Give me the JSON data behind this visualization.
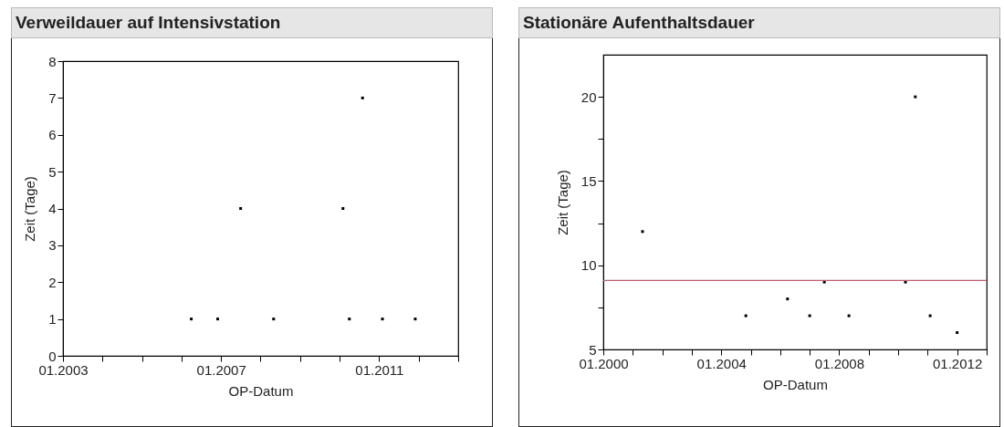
{
  "chart_data": [
    {
      "type": "scatter",
      "title": "Verweildauer auf Intensivstation",
      "xlabel": "OP-Datum",
      "ylabel": "Zeit (Tage)",
      "marker": "square",
      "grid": false,
      "x": [
        "2006-04",
        "2006-12",
        "2007-07",
        "2008-05",
        "2010-02",
        "2010-04",
        "2010-08",
        "2011-02",
        "2011-12"
      ],
      "series": [
        {
          "color": "#000000",
          "values": [
            1,
            1,
            4,
            1,
            4,
            1,
            7,
            1,
            1
          ]
        }
      ],
      "xlim": [
        "2003-01",
        "2013-01"
      ],
      "xticks": [
        {
          "value": "2003-01",
          "label": "01.2003"
        },
        {
          "value": "2004-01",
          "label": null
        },
        {
          "value": "2005-01",
          "label": null
        },
        {
          "value": "2006-01",
          "label": null
        },
        {
          "value": "2007-01",
          "label": "01.2007"
        },
        {
          "value": "2008-01",
          "label": null
        },
        {
          "value": "2009-01",
          "label": null
        },
        {
          "value": "2010-01",
          "label": null
        },
        {
          "value": "2011-01",
          "label": "01.2011"
        },
        {
          "value": "2012-01",
          "label": null
        },
        {
          "value": "2013-01",
          "label": null
        }
      ],
      "ylim": [
        0,
        8
      ],
      "yticks": [
        0,
        1,
        2,
        3,
        4,
        5,
        6,
        7,
        8
      ]
    },
    {
      "type": "scatter",
      "title": "Stationäre Aufenthaltsdauer",
      "xlabel": "OP-Datum",
      "ylabel": "Zeit (Tage)",
      "marker": "square",
      "grid": false,
      "x": [
        "2001-05",
        "2004-11",
        "2006-04",
        "2007-01",
        "2007-07",
        "2008-05",
        "2010-04",
        "2010-08",
        "2011-02",
        "2012-01"
      ],
      "series": [
        {
          "color": "#000000",
          "values": [
            12,
            7,
            8,
            7,
            9,
            7,
            9,
            20,
            7,
            6
          ]
        }
      ],
      "xlim": [
        "2000-01",
        "2013-01"
      ],
      "xticks": [
        {
          "value": "2000-01",
          "label": "01.2000"
        },
        {
          "value": "2001-01",
          "label": null
        },
        {
          "value": "2002-01",
          "label": null
        },
        {
          "value": "2003-01",
          "label": null
        },
        {
          "value": "2004-01",
          "label": "01.2004"
        },
        {
          "value": "2005-01",
          "label": null
        },
        {
          "value": "2006-01",
          "label": null
        },
        {
          "value": "2007-01",
          "label": null
        },
        {
          "value": "2008-01",
          "label": "01.2008"
        },
        {
          "value": "2009-01",
          "label": null
        },
        {
          "value": "2010-01",
          "label": null
        },
        {
          "value": "2011-01",
          "label": null
        },
        {
          "value": "2012-01",
          "label": "01.2012"
        },
        {
          "value": "2013-01",
          "label": null
        }
      ],
      "ylim": [
        5,
        22.5
      ],
      "yticks": [
        5,
        {
          "value": 7.5,
          "label": null
        },
        10,
        {
          "value": 12.5,
          "label": null
        },
        15,
        {
          "value": 17.5,
          "label": null
        },
        20
      ],
      "ref_lines": [
        {
          "axis": "y",
          "value": 9.1,
          "color": "#c0606e"
        }
      ]
    }
  ]
}
